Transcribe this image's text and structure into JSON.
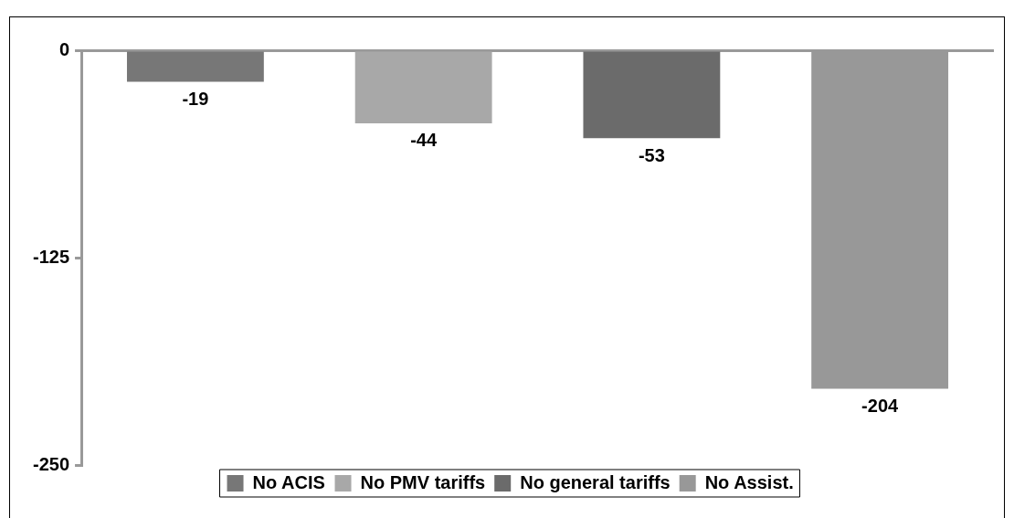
{
  "chart_data": {
    "type": "bar",
    "categories": [
      null,
      null,
      null,
      null
    ],
    "series": [
      {
        "name": "No ACIS",
        "color": "#777777",
        "values": [
          -19,
          null,
          null,
          null
        ]
      },
      {
        "name": "No PMV tariffs",
        "color": "#a8a8a8",
        "values": [
          null,
          -44,
          null,
          null
        ]
      },
      {
        "name": "No general tariffs",
        "color": "#6b6b6b",
        "values": [
          null,
          null,
          -53,
          null
        ]
      },
      {
        "name": "No Assist.",
        "color": "#989898",
        "values": [
          null,
          null,
          null,
          -204
        ]
      }
    ],
    "ylim": [
      -250,
      0
    ],
    "yticks": [
      -250,
      -125,
      0
    ],
    "grid": false,
    "legend": "bottom",
    "data_labels": true
  }
}
